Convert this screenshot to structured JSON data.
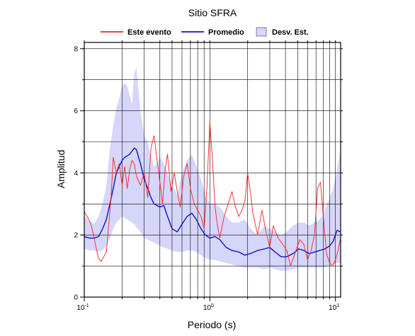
{
  "chart_data": {
    "type": "line",
    "title": "Sitio SFRA",
    "xlabel": "Periodo (s)",
    "ylabel": "Amplitud",
    "x_scale": "log",
    "xlim": [
      0.1,
      11
    ],
    "ylim": [
      0,
      8.2
    ],
    "x_ticks": [
      0.1,
      1,
      10
    ],
    "x_tick_labels": [
      {
        "base": "10",
        "exp": "-1"
      },
      {
        "base": "10",
        "exp": "0"
      },
      {
        "base": "10",
        "exp": "1"
      }
    ],
    "y_ticks": [
      0,
      2,
      4,
      6,
      8
    ],
    "y_tick_labels": [
      "0",
      "2",
      "4",
      "6",
      "8"
    ],
    "y_grid": [
      1,
      2,
      3,
      4,
      5,
      6,
      7,
      8
    ],
    "grid": true,
    "legend_position": "top",
    "legend": [
      {
        "label": "Este evento",
        "kind": "line",
        "color": "#ff2020"
      },
      {
        "label": "Promedio",
        "kind": "line",
        "color": "#1010d0"
      },
      {
        "label": "Desv. Est.",
        "kind": "band",
        "color": "#d6d6fa"
      }
    ],
    "series": [
      {
        "name": "Este evento",
        "color": "#ff2020",
        "x": [
          0.1,
          0.102,
          0.107,
          0.112,
          0.118,
          0.124,
          0.13,
          0.136,
          0.143,
          0.15,
          0.158,
          0.164,
          0.17,
          0.18,
          0.19,
          0.2,
          0.21,
          0.22,
          0.23,
          0.24,
          0.25,
          0.26,
          0.28,
          0.3,
          0.32,
          0.34,
          0.36,
          0.38,
          0.4,
          0.42,
          0.44,
          0.46,
          0.49,
          0.52,
          0.55,
          0.58,
          0.62,
          0.66,
          0.7,
          0.75,
          0.8,
          0.85,
          0.9,
          0.95,
          1.0,
          1.05,
          1.1,
          1.15,
          1.2,
          1.3,
          1.4,
          1.5,
          1.6,
          1.7,
          1.8,
          1.9,
          2.0,
          2.1,
          2.2,
          2.4,
          2.6,
          2.8,
          3.0,
          3.2,
          3.5,
          3.8,
          4.1,
          4.4,
          4.8,
          5.2,
          5.6,
          6.0,
          6.4,
          6.8,
          7.2,
          7.6,
          8.0,
          8.5,
          9.0,
          9.5,
          10.0,
          10.5,
          11.0
        ],
        "y": [
          2.75,
          2.7,
          2.55,
          2.4,
          2.05,
          1.6,
          1.25,
          1.15,
          1.3,
          1.45,
          2.5,
          3.3,
          4.5,
          4.0,
          4.3,
          3.6,
          4.2,
          3.5,
          4.1,
          4.4,
          4.3,
          3.9,
          3.6,
          4.0,
          3.2,
          4.8,
          5.2,
          4.4,
          3.7,
          3.0,
          4.1,
          4.6,
          3.4,
          4.0,
          3.4,
          2.9,
          3.9,
          4.3,
          3.5,
          3.0,
          2.8,
          2.6,
          2.2,
          3.6,
          5.65,
          4.4,
          2.9,
          2.3,
          1.9,
          2.6,
          3.0,
          3.4,
          2.9,
          2.6,
          2.8,
          3.1,
          4.0,
          3.4,
          2.7,
          2.0,
          2.8,
          2.1,
          1.6,
          2.3,
          1.9,
          1.7,
          1.5,
          1.0,
          1.45,
          1.85,
          1.7,
          1.2,
          1.5,
          2.0,
          3.5,
          3.7,
          2.6,
          1.4,
          1.1,
          1.0,
          1.2,
          1.5,
          1.9
        ]
      },
      {
        "name": "Promedio",
        "color": "#1010d0",
        "x": [
          0.1,
          0.11,
          0.12,
          0.13,
          0.14,
          0.15,
          0.16,
          0.17,
          0.18,
          0.19,
          0.2,
          0.21,
          0.22,
          0.23,
          0.24,
          0.25,
          0.26,
          0.28,
          0.3,
          0.32,
          0.34,
          0.36,
          0.38,
          0.4,
          0.43,
          0.46,
          0.5,
          0.55,
          0.6,
          0.66,
          0.72,
          0.78,
          0.85,
          0.92,
          1.0,
          1.1,
          1.2,
          1.35,
          1.5,
          1.7,
          1.9,
          2.1,
          2.4,
          2.7,
          3.0,
          3.3,
          3.7,
          4.1,
          4.6,
          5.1,
          5.6,
          6.2,
          6.8,
          7.5,
          8.2,
          9.0,
          9.6,
          10.3,
          11.0
        ],
        "y": [
          1.95,
          1.9,
          1.9,
          1.95,
          2.2,
          2.5,
          3.0,
          3.5,
          4.0,
          4.2,
          4.4,
          4.5,
          4.55,
          4.6,
          4.7,
          4.8,
          4.75,
          4.3,
          3.8,
          3.5,
          3.2,
          3.0,
          2.95,
          2.9,
          2.95,
          2.6,
          2.2,
          2.1,
          2.35,
          2.6,
          2.7,
          2.5,
          2.2,
          2.0,
          1.9,
          1.95,
          1.85,
          1.6,
          1.5,
          1.45,
          1.35,
          1.4,
          1.5,
          1.55,
          1.6,
          1.45,
          1.3,
          1.3,
          1.4,
          1.55,
          1.5,
          1.4,
          1.45,
          1.5,
          1.55,
          1.65,
          1.8,
          2.15,
          2.1
        ]
      },
      {
        "name": "Desv. Est.",
        "color": "#d6d6fa",
        "x": [
          0.1,
          0.11,
          0.12,
          0.13,
          0.14,
          0.15,
          0.16,
          0.17,
          0.18,
          0.19,
          0.2,
          0.21,
          0.22,
          0.23,
          0.24,
          0.25,
          0.26,
          0.28,
          0.3,
          0.32,
          0.34,
          0.36,
          0.38,
          0.4,
          0.43,
          0.46,
          0.5,
          0.55,
          0.6,
          0.66,
          0.72,
          0.78,
          0.85,
          0.92,
          1.0,
          1.1,
          1.2,
          1.35,
          1.5,
          1.7,
          1.9,
          2.1,
          2.4,
          2.7,
          3.0,
          3.3,
          3.7,
          4.1,
          4.6,
          5.1,
          5.6,
          6.2,
          6.8,
          7.5,
          8.2,
          9.0,
          9.6,
          10.3,
          11.0
        ],
        "upper": [
          2.6,
          2.45,
          2.35,
          2.6,
          3.0,
          3.6,
          4.8,
          5.5,
          6.1,
          6.4,
          6.8,
          6.9,
          6.8,
          6.5,
          6.2,
          7.2,
          7.4,
          6.0,
          5.2,
          5.0,
          4.5,
          4.2,
          4.3,
          4.5,
          4.3,
          4.0,
          3.6,
          3.3,
          4.0,
          4.4,
          4.6,
          4.2,
          3.8,
          3.3,
          3.0,
          3.0,
          2.9,
          2.6,
          2.4,
          2.4,
          2.5,
          2.2,
          2.0,
          2.3,
          2.2,
          2.1,
          2.0,
          2.1,
          2.3,
          2.4,
          2.4,
          2.3,
          2.4,
          2.5,
          2.8,
          3.2,
          3.5,
          4.1,
          4.8
        ],
        "lower": [
          1.55,
          1.5,
          1.5,
          1.45,
          1.5,
          1.65,
          1.9,
          2.2,
          2.4,
          2.5,
          2.6,
          2.55,
          2.5,
          2.45,
          2.4,
          2.35,
          2.25,
          2.1,
          1.9,
          1.85,
          1.8,
          1.75,
          1.7,
          1.65,
          1.6,
          1.55,
          1.5,
          1.45,
          1.45,
          1.5,
          1.5,
          1.45,
          1.35,
          1.25,
          1.2,
          1.2,
          1.15,
          1.1,
          1.05,
          1.0,
          0.95,
          0.95,
          0.95,
          0.9,
          0.95,
          0.9,
          0.85,
          0.85,
          0.9,
          0.95,
          0.95,
          0.95,
          0.95,
          0.95,
          0.95,
          1.0,
          1.05,
          1.1,
          1.1
        ]
      }
    ]
  }
}
